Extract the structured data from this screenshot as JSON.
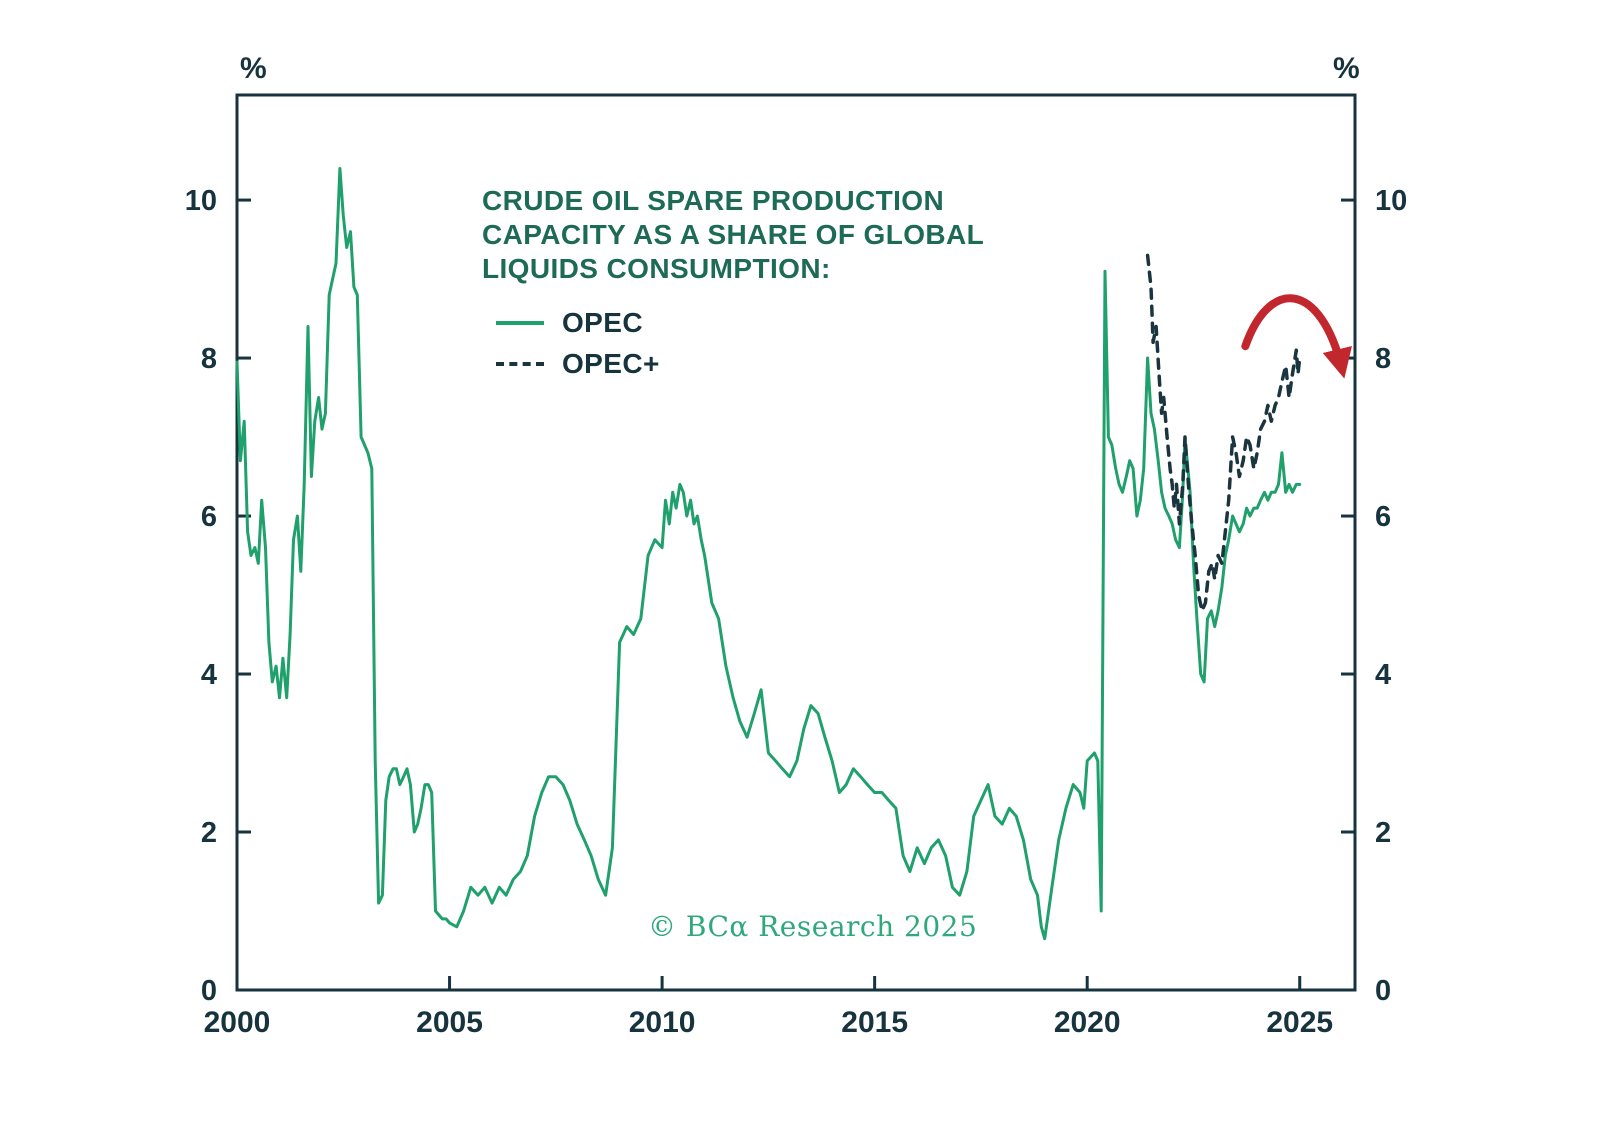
{
  "page": {
    "copyright": "© BCα Research 2025"
  },
  "chart_data": {
    "type": "line",
    "title_lines": [
      "CRUDE OIL SPARE PRODUCTION",
      "CAPACITY AS A SHARE OF GLOBAL",
      "LIQUIDS CONSUMPTION:"
    ],
    "y_unit": "%",
    "xlim": [
      2000,
      2026.3
    ],
    "ylim": [
      0,
      11.33
    ],
    "x_ticks": [
      2000,
      2005,
      2010,
      2015,
      2020,
      2025
    ],
    "y_ticks": [
      0,
      2,
      4,
      6,
      8,
      10
    ],
    "grid": false,
    "legend_position": "upper-left-inside",
    "colors": {
      "opec": "#1fa06c",
      "opec_plus": "#1b3540",
      "arrow": "#c1272d",
      "axis": "#16333e",
      "title": "#1d6b54",
      "copyright": "#2fa87c"
    },
    "series": [
      {
        "name": "OPEC",
        "style": "solid",
        "color_key": "opec",
        "points": [
          [
            2000.0,
            7.95
          ],
          [
            2000.08,
            6.7
          ],
          [
            2000.17,
            7.2
          ],
          [
            2000.25,
            5.8
          ],
          [
            2000.33,
            5.5
          ],
          [
            2000.42,
            5.6
          ],
          [
            2000.5,
            5.4
          ],
          [
            2000.58,
            6.2
          ],
          [
            2000.67,
            5.6
          ],
          [
            2000.75,
            4.4
          ],
          [
            2000.83,
            3.9
          ],
          [
            2000.92,
            4.1
          ],
          [
            2001.0,
            3.7
          ],
          [
            2001.08,
            4.2
          ],
          [
            2001.17,
            3.7
          ],
          [
            2001.25,
            4.5
          ],
          [
            2001.33,
            5.7
          ],
          [
            2001.42,
            6.0
          ],
          [
            2001.5,
            5.3
          ],
          [
            2001.58,
            6.4
          ],
          [
            2001.67,
            8.4
          ],
          [
            2001.75,
            6.5
          ],
          [
            2001.83,
            7.2
          ],
          [
            2001.92,
            7.5
          ],
          [
            2002.0,
            7.1
          ],
          [
            2002.08,
            7.3
          ],
          [
            2002.17,
            8.8
          ],
          [
            2002.25,
            9.0
          ],
          [
            2002.33,
            9.2
          ],
          [
            2002.42,
            10.4
          ],
          [
            2002.5,
            9.8
          ],
          [
            2002.58,
            9.4
          ],
          [
            2002.67,
            9.6
          ],
          [
            2002.75,
            8.9
          ],
          [
            2002.83,
            8.8
          ],
          [
            2002.92,
            7.0
          ],
          [
            2003.0,
            6.9
          ],
          [
            2003.08,
            6.8
          ],
          [
            2003.17,
            6.6
          ],
          [
            2003.25,
            2.9
          ],
          [
            2003.33,
            1.1
          ],
          [
            2003.42,
            1.2
          ],
          [
            2003.5,
            2.4
          ],
          [
            2003.58,
            2.7
          ],
          [
            2003.67,
            2.8
          ],
          [
            2003.75,
            2.8
          ],
          [
            2003.83,
            2.6
          ],
          [
            2003.92,
            2.7
          ],
          [
            2004.0,
            2.8
          ],
          [
            2004.08,
            2.6
          ],
          [
            2004.17,
            2.0
          ],
          [
            2004.25,
            2.1
          ],
          [
            2004.33,
            2.3
          ],
          [
            2004.42,
            2.6
          ],
          [
            2004.5,
            2.6
          ],
          [
            2004.58,
            2.5
          ],
          [
            2004.67,
            1.0
          ],
          [
            2004.75,
            0.95
          ],
          [
            2004.83,
            0.9
          ],
          [
            2004.92,
            0.9
          ],
          [
            2005.0,
            0.85
          ],
          [
            2005.17,
            0.8
          ],
          [
            2005.33,
            1.0
          ],
          [
            2005.5,
            1.3
          ],
          [
            2005.67,
            1.2
          ],
          [
            2005.83,
            1.3
          ],
          [
            2006.0,
            1.1
          ],
          [
            2006.17,
            1.3
          ],
          [
            2006.33,
            1.2
          ],
          [
            2006.5,
            1.4
          ],
          [
            2006.67,
            1.5
          ],
          [
            2006.83,
            1.7
          ],
          [
            2007.0,
            2.2
          ],
          [
            2007.17,
            2.5
          ],
          [
            2007.33,
            2.7
          ],
          [
            2007.5,
            2.7
          ],
          [
            2007.67,
            2.6
          ],
          [
            2007.83,
            2.4
          ],
          [
            2008.0,
            2.1
          ],
          [
            2008.17,
            1.9
          ],
          [
            2008.33,
            1.7
          ],
          [
            2008.5,
            1.4
          ],
          [
            2008.67,
            1.2
          ],
          [
            2008.83,
            1.8
          ],
          [
            2009.0,
            4.4
          ],
          [
            2009.17,
            4.6
          ],
          [
            2009.33,
            4.5
          ],
          [
            2009.5,
            4.7
          ],
          [
            2009.67,
            5.5
          ],
          [
            2009.83,
            5.7
          ],
          [
            2010.0,
            5.6
          ],
          [
            2010.08,
            6.2
          ],
          [
            2010.17,
            5.9
          ],
          [
            2010.25,
            6.3
          ],
          [
            2010.33,
            6.1
          ],
          [
            2010.42,
            6.4
          ],
          [
            2010.5,
            6.3
          ],
          [
            2010.58,
            6.0
          ],
          [
            2010.67,
            6.2
          ],
          [
            2010.75,
            5.9
          ],
          [
            2010.83,
            6.0
          ],
          [
            2010.92,
            5.7
          ],
          [
            2011.0,
            5.5
          ],
          [
            2011.17,
            4.9
          ],
          [
            2011.33,
            4.7
          ],
          [
            2011.5,
            4.1
          ],
          [
            2011.67,
            3.7
          ],
          [
            2011.83,
            3.4
          ],
          [
            2012.0,
            3.2
          ],
          [
            2012.17,
            3.5
          ],
          [
            2012.33,
            3.8
          ],
          [
            2012.5,
            3.0
          ],
          [
            2012.67,
            2.9
          ],
          [
            2012.83,
            2.8
          ],
          [
            2013.0,
            2.7
          ],
          [
            2013.17,
            2.9
          ],
          [
            2013.33,
            3.3
          ],
          [
            2013.5,
            3.6
          ],
          [
            2013.67,
            3.5
          ],
          [
            2013.83,
            3.2
          ],
          [
            2014.0,
            2.9
          ],
          [
            2014.17,
            2.5
          ],
          [
            2014.33,
            2.6
          ],
          [
            2014.5,
            2.8
          ],
          [
            2014.67,
            2.7
          ],
          [
            2014.83,
            2.6
          ],
          [
            2015.0,
            2.5
          ],
          [
            2015.17,
            2.5
          ],
          [
            2015.33,
            2.4
          ],
          [
            2015.5,
            2.3
          ],
          [
            2015.67,
            1.7
          ],
          [
            2015.83,
            1.5
          ],
          [
            2016.0,
            1.8
          ],
          [
            2016.17,
            1.6
          ],
          [
            2016.33,
            1.8
          ],
          [
            2016.5,
            1.9
          ],
          [
            2016.67,
            1.7
          ],
          [
            2016.83,
            1.3
          ],
          [
            2017.0,
            1.2
          ],
          [
            2017.17,
            1.5
          ],
          [
            2017.33,
            2.2
          ],
          [
            2017.5,
            2.4
          ],
          [
            2017.67,
            2.6
          ],
          [
            2017.83,
            2.2
          ],
          [
            2018.0,
            2.1
          ],
          [
            2018.17,
            2.3
          ],
          [
            2018.33,
            2.2
          ],
          [
            2018.5,
            1.9
          ],
          [
            2018.67,
            1.4
          ],
          [
            2018.83,
            1.2
          ],
          [
            2018.92,
            0.8
          ],
          [
            2019.0,
            0.65
          ],
          [
            2019.17,
            1.3
          ],
          [
            2019.33,
            1.9
          ],
          [
            2019.5,
            2.3
          ],
          [
            2019.67,
            2.6
          ],
          [
            2019.83,
            2.5
          ],
          [
            2019.92,
            2.3
          ],
          [
            2020.0,
            2.9
          ],
          [
            2020.17,
            3.0
          ],
          [
            2020.25,
            2.9
          ],
          [
            2020.33,
            1.0
          ],
          [
            2020.42,
            9.1
          ],
          [
            2020.5,
            7.0
          ],
          [
            2020.58,
            6.9
          ],
          [
            2020.67,
            6.6
          ],
          [
            2020.75,
            6.4
          ],
          [
            2020.83,
            6.3
          ],
          [
            2020.92,
            6.5
          ],
          [
            2021.0,
            6.7
          ],
          [
            2021.08,
            6.6
          ],
          [
            2021.17,
            6.0
          ],
          [
            2021.25,
            6.2
          ],
          [
            2021.33,
            6.6
          ],
          [
            2021.42,
            8.0
          ],
          [
            2021.5,
            7.3
          ],
          [
            2021.58,
            7.1
          ],
          [
            2021.67,
            6.7
          ],
          [
            2021.75,
            6.3
          ],
          [
            2021.83,
            6.1
          ],
          [
            2021.92,
            6.0
          ],
          [
            2022.0,
            5.9
          ],
          [
            2022.08,
            5.7
          ],
          [
            2022.17,
            5.6
          ],
          [
            2022.25,
            6.3
          ],
          [
            2022.3,
            7.0
          ],
          [
            2022.42,
            6.3
          ],
          [
            2022.5,
            5.4
          ],
          [
            2022.58,
            4.7
          ],
          [
            2022.67,
            4.0
          ],
          [
            2022.75,
            3.9
          ],
          [
            2022.83,
            4.7
          ],
          [
            2022.92,
            4.8
          ],
          [
            2023.0,
            4.6
          ],
          [
            2023.08,
            4.8
          ],
          [
            2023.17,
            5.1
          ],
          [
            2023.25,
            5.5
          ],
          [
            2023.33,
            5.7
          ],
          [
            2023.42,
            6.0
          ],
          [
            2023.5,
            5.9
          ],
          [
            2023.58,
            5.8
          ],
          [
            2023.67,
            5.9
          ],
          [
            2023.75,
            6.1
          ],
          [
            2023.83,
            6.0
          ],
          [
            2023.92,
            6.1
          ],
          [
            2024.0,
            6.1
          ],
          [
            2024.08,
            6.2
          ],
          [
            2024.17,
            6.3
          ],
          [
            2024.25,
            6.2
          ],
          [
            2024.33,
            6.3
          ],
          [
            2024.42,
            6.3
          ],
          [
            2024.5,
            6.4
          ],
          [
            2024.58,
            6.8
          ],
          [
            2024.67,
            6.3
          ],
          [
            2024.75,
            6.4
          ],
          [
            2024.83,
            6.3
          ],
          [
            2024.92,
            6.4
          ],
          [
            2025.0,
            6.4
          ]
        ]
      },
      {
        "name": "OPEC+",
        "style": "dashed",
        "color_key": "opec_plus",
        "points": [
          [
            2021.42,
            9.3
          ],
          [
            2021.5,
            8.9
          ],
          [
            2021.55,
            8.2
          ],
          [
            2021.62,
            8.4
          ],
          [
            2021.7,
            7.7
          ],
          [
            2021.75,
            7.3
          ],
          [
            2021.8,
            7.5
          ],
          [
            2021.88,
            7.0
          ],
          [
            2021.95,
            6.6
          ],
          [
            2022.0,
            6.4
          ],
          [
            2022.05,
            6.1
          ],
          [
            2022.1,
            6.4
          ],
          [
            2022.17,
            5.9
          ],
          [
            2022.25,
            6.4
          ],
          [
            2022.3,
            7.0
          ],
          [
            2022.38,
            6.4
          ],
          [
            2022.46,
            5.9
          ],
          [
            2022.54,
            5.5
          ],
          [
            2022.62,
            5.0
          ],
          [
            2022.7,
            4.8
          ],
          [
            2022.78,
            4.9
          ],
          [
            2022.86,
            5.3
          ],
          [
            2022.94,
            5.4
          ],
          [
            2023.0,
            5.2
          ],
          [
            2023.08,
            5.5
          ],
          [
            2023.17,
            5.4
          ],
          [
            2023.25,
            5.8
          ],
          [
            2023.33,
            6.2
          ],
          [
            2023.42,
            7.0
          ],
          [
            2023.5,
            6.8
          ],
          [
            2023.58,
            6.5
          ],
          [
            2023.67,
            6.7
          ],
          [
            2023.75,
            7.0
          ],
          [
            2023.83,
            6.9
          ],
          [
            2023.92,
            6.6
          ],
          [
            2024.0,
            6.8
          ],
          [
            2024.08,
            7.1
          ],
          [
            2024.17,
            7.2
          ],
          [
            2024.25,
            7.4
          ],
          [
            2024.33,
            7.2
          ],
          [
            2024.42,
            7.4
          ],
          [
            2024.5,
            7.5
          ],
          [
            2024.58,
            7.7
          ],
          [
            2024.67,
            7.9
          ],
          [
            2024.75,
            7.5
          ],
          [
            2024.83,
            7.8
          ],
          [
            2024.92,
            8.1
          ],
          [
            2024.96,
            7.8
          ],
          [
            2025.0,
            8.0
          ]
        ]
      }
    ],
    "annotation": {
      "type": "arrow",
      "shape": "arc-over-down",
      "start": [
        2023.72,
        8.15
      ],
      "peak": [
        2024.85,
        8.85
      ],
      "end": [
        2026.0,
        7.85
      ]
    }
  }
}
